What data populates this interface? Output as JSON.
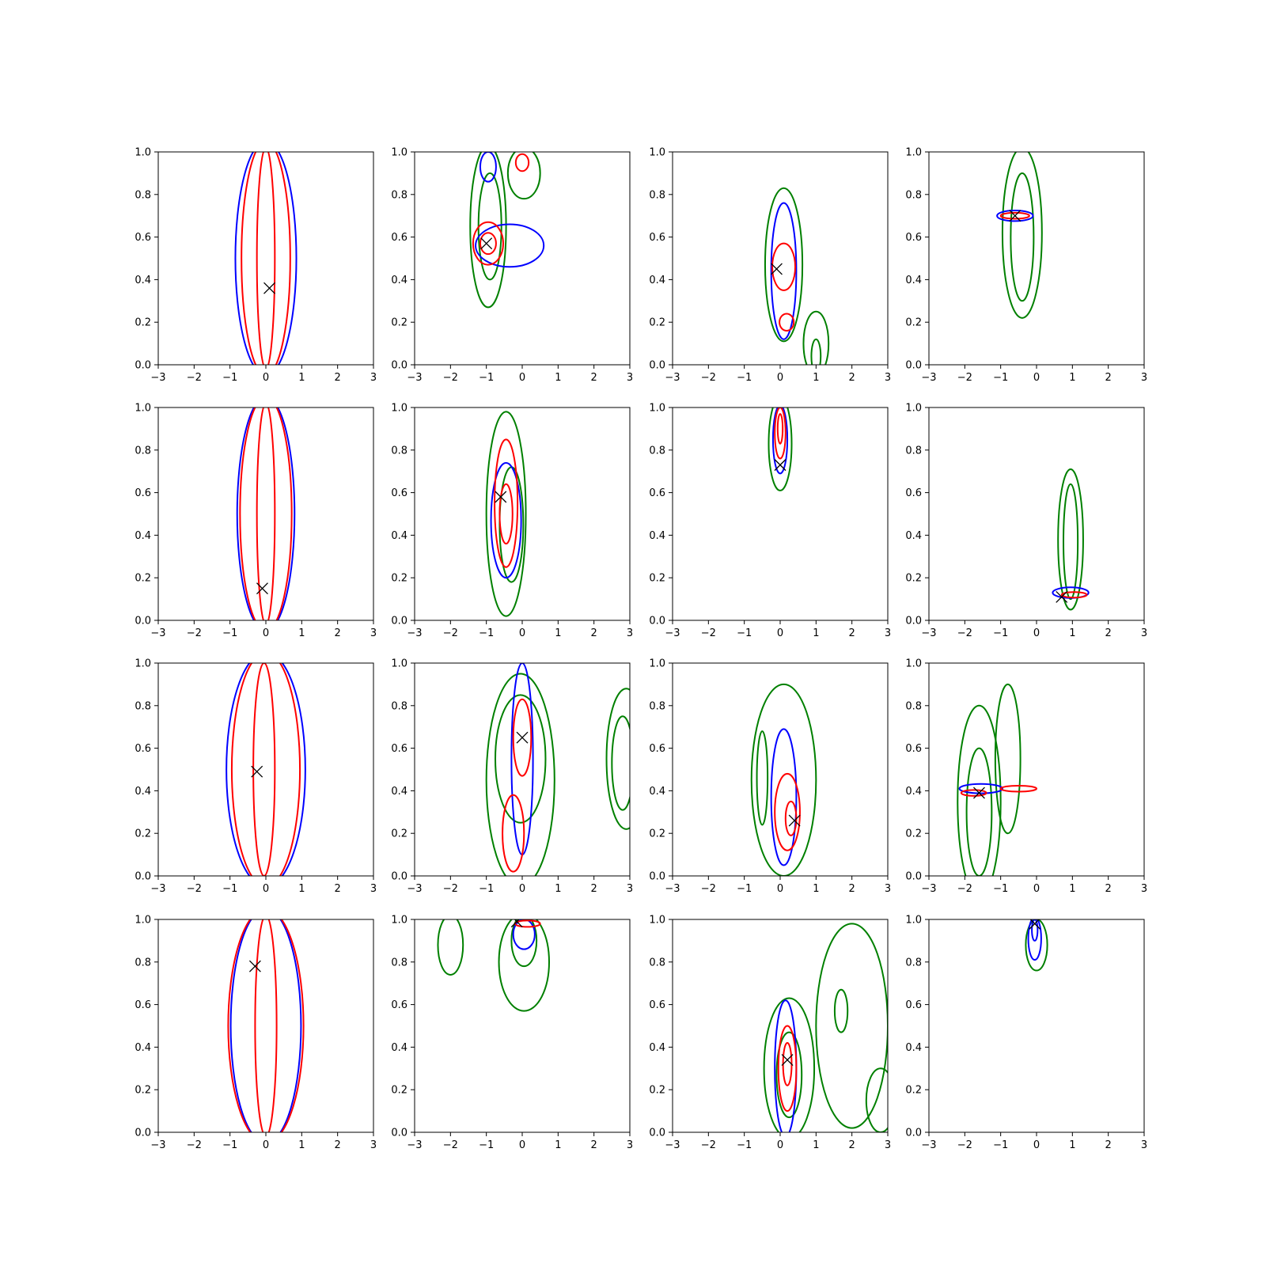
{
  "figure": {
    "rows": 4,
    "cols": 4,
    "background": "#ffffff"
  },
  "colors": {
    "green": "#008000",
    "blue": "#0000ff",
    "red": "#ff0000",
    "marker": "#000000"
  },
  "chart_data": {
    "type": "contour-grid",
    "xlim": [
      -3,
      3
    ],
    "ylim": [
      0,
      1
    ],
    "xticks": [
      "−3",
      "−2",
      "−1",
      "0",
      "1",
      "2",
      "3"
    ],
    "yticks": [
      "0.0",
      "0.2",
      "0.4",
      "0.6",
      "0.8",
      "1.0"
    ],
    "grid": false,
    "legend": "none",
    "marker_symbol": "x",
    "panels": [
      {
        "row": 0,
        "col": 0,
        "marker": [
          0.1,
          0.36
        ],
        "contours": [
          {
            "color": "blue",
            "cx": 0.0,
            "cy": 0.5,
            "rx": 0.85,
            "ry": 0.55
          },
          {
            "color": "red",
            "cx": 0.0,
            "cy": 0.5,
            "rx": 0.68,
            "ry": 0.55
          },
          {
            "color": "red",
            "cx": 0.0,
            "cy": 0.5,
            "rx": 0.25,
            "ry": 0.52
          }
        ]
      },
      {
        "row": 0,
        "col": 1,
        "marker": [
          -1.0,
          0.57
        ],
        "contours": [
          {
            "color": "green",
            "cx": -0.95,
            "cy": 0.65,
            "rx": 0.5,
            "ry": 0.38
          },
          {
            "color": "green",
            "cx": -0.9,
            "cy": 0.65,
            "rx": 0.32,
            "ry": 0.25
          },
          {
            "color": "green",
            "cx": 0.05,
            "cy": 0.9,
            "rx": 0.45,
            "ry": 0.12
          },
          {
            "color": "blue",
            "cx": -0.35,
            "cy": 0.56,
            "rx": 0.95,
            "ry": 0.1
          },
          {
            "color": "blue",
            "cx": -0.95,
            "cy": 0.93,
            "rx": 0.22,
            "ry": 0.07
          },
          {
            "color": "red",
            "cx": -0.95,
            "cy": 0.57,
            "rx": 0.42,
            "ry": 0.1
          },
          {
            "color": "red",
            "cx": -0.95,
            "cy": 0.57,
            "rx": 0.22,
            "ry": 0.05
          },
          {
            "color": "red",
            "cx": 0.0,
            "cy": 0.95,
            "rx": 0.18,
            "ry": 0.04
          }
        ]
      },
      {
        "row": 0,
        "col": 2,
        "marker": [
          -0.1,
          0.45
        ],
        "contours": [
          {
            "color": "green",
            "cx": 0.1,
            "cy": 0.47,
            "rx": 0.52,
            "ry": 0.36
          },
          {
            "color": "green",
            "cx": 1.0,
            "cy": 0.1,
            "rx": 0.35,
            "ry": 0.15
          },
          {
            "color": "green",
            "cx": 1.0,
            "cy": 0.04,
            "rx": 0.13,
            "ry": 0.08
          },
          {
            "color": "blue",
            "cx": 0.1,
            "cy": 0.44,
            "rx": 0.35,
            "ry": 0.32
          },
          {
            "color": "red",
            "cx": 0.1,
            "cy": 0.46,
            "rx": 0.32,
            "ry": 0.11
          },
          {
            "color": "red",
            "cx": 0.18,
            "cy": 0.2,
            "rx": 0.2,
            "ry": 0.04
          }
        ]
      },
      {
        "row": 0,
        "col": 3,
        "marker": [
          -0.6,
          0.7
        ],
        "contours": [
          {
            "color": "green",
            "cx": -0.4,
            "cy": 0.62,
            "rx": 0.55,
            "ry": 0.4
          },
          {
            "color": "green",
            "cx": -0.4,
            "cy": 0.6,
            "rx": 0.32,
            "ry": 0.3
          },
          {
            "color": "blue",
            "cx": -0.6,
            "cy": 0.7,
            "rx": 0.5,
            "ry": 0.025
          },
          {
            "color": "red",
            "cx": -0.6,
            "cy": 0.7,
            "rx": 0.4,
            "ry": 0.014
          }
        ]
      },
      {
        "row": 1,
        "col": 0,
        "marker": [
          -0.1,
          0.15
        ],
        "contours": [
          {
            "color": "blue",
            "cx": 0.0,
            "cy": 0.5,
            "rx": 0.8,
            "ry": 0.55
          },
          {
            "color": "red",
            "cx": 0.0,
            "cy": 0.5,
            "rx": 0.72,
            "ry": 0.55
          },
          {
            "color": "red",
            "cx": 0.0,
            "cy": 0.5,
            "rx": 0.25,
            "ry": 0.52
          }
        ]
      },
      {
        "row": 1,
        "col": 1,
        "marker": [
          -0.6,
          0.58
        ],
        "contours": [
          {
            "color": "green",
            "cx": -0.45,
            "cy": 0.5,
            "rx": 0.55,
            "ry": 0.48
          },
          {
            "color": "green",
            "cx": -0.3,
            "cy": 0.45,
            "rx": 0.33,
            "ry": 0.27
          },
          {
            "color": "blue",
            "cx": -0.45,
            "cy": 0.47,
            "rx": 0.42,
            "ry": 0.27
          },
          {
            "color": "red",
            "cx": -0.45,
            "cy": 0.55,
            "rx": 0.32,
            "ry": 0.3
          },
          {
            "color": "red",
            "cx": -0.45,
            "cy": 0.5,
            "rx": 0.18,
            "ry": 0.14
          }
        ]
      },
      {
        "row": 1,
        "col": 2,
        "marker": [
          0.0,
          0.73
        ],
        "contours": [
          {
            "color": "green",
            "cx": 0.0,
            "cy": 0.83,
            "rx": 0.32,
            "ry": 0.22
          },
          {
            "color": "blue",
            "cx": 0.0,
            "cy": 0.85,
            "rx": 0.2,
            "ry": 0.16
          },
          {
            "color": "red",
            "cx": 0.0,
            "cy": 0.88,
            "rx": 0.15,
            "ry": 0.12
          },
          {
            "color": "red",
            "cx": 0.0,
            "cy": 0.9,
            "rx": 0.07,
            "ry": 0.07
          }
        ]
      },
      {
        "row": 1,
        "col": 3,
        "marker": [
          0.7,
          0.11
        ],
        "contours": [
          {
            "color": "green",
            "cx": 0.95,
            "cy": 0.38,
            "rx": 0.35,
            "ry": 0.33
          },
          {
            "color": "green",
            "cx": 0.95,
            "cy": 0.37,
            "rx": 0.2,
            "ry": 0.27
          },
          {
            "color": "blue",
            "cx": 0.95,
            "cy": 0.13,
            "rx": 0.5,
            "ry": 0.025
          },
          {
            "color": "red",
            "cx": 1.05,
            "cy": 0.12,
            "rx": 0.35,
            "ry": 0.013
          }
        ]
      },
      {
        "row": 2,
        "col": 0,
        "marker": [
          -0.25,
          0.49
        ],
        "contours": [
          {
            "color": "blue",
            "cx": 0.0,
            "cy": 0.5,
            "rx": 1.1,
            "ry": 0.55
          },
          {
            "color": "red",
            "cx": 0.0,
            "cy": 0.5,
            "rx": 0.95,
            "ry": 0.55
          },
          {
            "color": "red",
            "cx": -0.05,
            "cy": 0.5,
            "rx": 0.3,
            "ry": 0.5
          }
        ]
      },
      {
        "row": 2,
        "col": 1,
        "marker": [
          0.0,
          0.65
        ],
        "contours": [
          {
            "color": "green",
            "cx": -0.05,
            "cy": 0.45,
            "rx": 0.95,
            "ry": 0.5
          },
          {
            "color": "green",
            "cx": -0.05,
            "cy": 0.55,
            "rx": 0.7,
            "ry": 0.3
          },
          {
            "color": "green",
            "cx": 2.9,
            "cy": 0.55,
            "rx": 0.55,
            "ry": 0.33
          },
          {
            "color": "green",
            "cx": 2.8,
            "cy": 0.53,
            "rx": 0.3,
            "ry": 0.22
          },
          {
            "color": "blue",
            "cx": 0.0,
            "cy": 0.55,
            "rx": 0.3,
            "ry": 0.45
          },
          {
            "color": "red",
            "cx": 0.0,
            "cy": 0.65,
            "rx": 0.25,
            "ry": 0.18
          },
          {
            "color": "red",
            "cx": -0.25,
            "cy": 0.2,
            "rx": 0.3,
            "ry": 0.18
          }
        ]
      },
      {
        "row": 2,
        "col": 2,
        "marker": [
          0.4,
          0.26
        ],
        "contours": [
          {
            "color": "green",
            "cx": 0.1,
            "cy": 0.45,
            "rx": 0.9,
            "ry": 0.45
          },
          {
            "color": "green",
            "cx": -0.5,
            "cy": 0.46,
            "rx": 0.15,
            "ry": 0.22
          },
          {
            "color": "blue",
            "cx": 0.1,
            "cy": 0.37,
            "rx": 0.35,
            "ry": 0.32
          },
          {
            "color": "red",
            "cx": 0.2,
            "cy": 0.3,
            "rx": 0.35,
            "ry": 0.18
          },
          {
            "color": "red",
            "cx": 0.3,
            "cy": 0.27,
            "rx": 0.15,
            "ry": 0.08
          }
        ]
      },
      {
        "row": 2,
        "col": 3,
        "marker": [
          -1.6,
          0.39
        ],
        "contours": [
          {
            "color": "green",
            "cx": -1.6,
            "cy": 0.35,
            "rx": 0.6,
            "ry": 0.45
          },
          {
            "color": "green",
            "cx": -1.6,
            "cy": 0.3,
            "rx": 0.35,
            "ry": 0.3
          },
          {
            "color": "green",
            "cx": -0.8,
            "cy": 0.55,
            "rx": 0.35,
            "ry": 0.35
          },
          {
            "color": "blue",
            "cx": -1.55,
            "cy": 0.41,
            "rx": 0.6,
            "ry": 0.022
          },
          {
            "color": "red",
            "cx": -1.75,
            "cy": 0.39,
            "rx": 0.35,
            "ry": 0.014
          },
          {
            "color": "red",
            "cx": -0.5,
            "cy": 0.41,
            "rx": 0.5,
            "ry": 0.014
          }
        ]
      },
      {
        "row": 3,
        "col": 0,
        "marker": [
          -0.3,
          0.78
        ],
        "contours": [
          {
            "color": "blue",
            "cx": 0.0,
            "cy": 0.5,
            "rx": 0.98,
            "ry": 0.55
          },
          {
            "color": "red",
            "cx": 0.0,
            "cy": 0.5,
            "rx": 1.05,
            "ry": 0.55
          },
          {
            "color": "red",
            "cx": 0.0,
            "cy": 0.5,
            "rx": 0.3,
            "ry": 0.52
          }
        ]
      },
      {
        "row": 3,
        "col": 1,
        "marker": [
          -0.15,
          0.99
        ],
        "contours": [
          {
            "color": "green",
            "cx": -2.0,
            "cy": 0.88,
            "rx": 0.35,
            "ry": 0.14
          },
          {
            "color": "green",
            "cx": 0.05,
            "cy": 0.8,
            "rx": 0.7,
            "ry": 0.23
          },
          {
            "color": "green",
            "cx": 0.05,
            "cy": 0.9,
            "rx": 0.35,
            "ry": 0.12
          },
          {
            "color": "blue",
            "cx": 0.05,
            "cy": 0.93,
            "rx": 0.3,
            "ry": 0.07
          },
          {
            "color": "red",
            "cx": 0.15,
            "cy": 0.98,
            "rx": 0.35,
            "ry": 0.015
          }
        ]
      },
      {
        "row": 3,
        "col": 2,
        "marker": [
          0.2,
          0.34
        ],
        "contours": [
          {
            "color": "green",
            "cx": 0.25,
            "cy": 0.3,
            "rx": 0.7,
            "ry": 0.33
          },
          {
            "color": "green",
            "cx": 0.25,
            "cy": 0.27,
            "rx": 0.35,
            "ry": 0.2
          },
          {
            "color": "green",
            "cx": 2.0,
            "cy": 0.5,
            "rx": 1.0,
            "ry": 0.48
          },
          {
            "color": "green",
            "cx": 1.7,
            "cy": 0.57,
            "rx": 0.18,
            "ry": 0.1
          },
          {
            "color": "green",
            "cx": 2.8,
            "cy": 0.15,
            "rx": 0.4,
            "ry": 0.15
          },
          {
            "color": "blue",
            "cx": 0.15,
            "cy": 0.3,
            "rx": 0.3,
            "ry": 0.32
          },
          {
            "color": "red",
            "cx": 0.2,
            "cy": 0.3,
            "rx": 0.25,
            "ry": 0.2
          },
          {
            "color": "red",
            "cx": 0.2,
            "cy": 0.32,
            "rx": 0.12,
            "ry": 0.1
          }
        ]
      },
      {
        "row": 3,
        "col": 3,
        "marker": [
          -0.05,
          0.98
        ],
        "contours": [
          {
            "color": "green",
            "cx": 0.0,
            "cy": 0.88,
            "rx": 0.3,
            "ry": 0.12
          },
          {
            "color": "blue",
            "cx": -0.05,
            "cy": 0.91,
            "rx": 0.18,
            "ry": 0.1
          },
          {
            "color": "blue",
            "cx": -0.05,
            "cy": 0.95,
            "rx": 0.08,
            "ry": 0.05
          }
        ]
      }
    ]
  }
}
